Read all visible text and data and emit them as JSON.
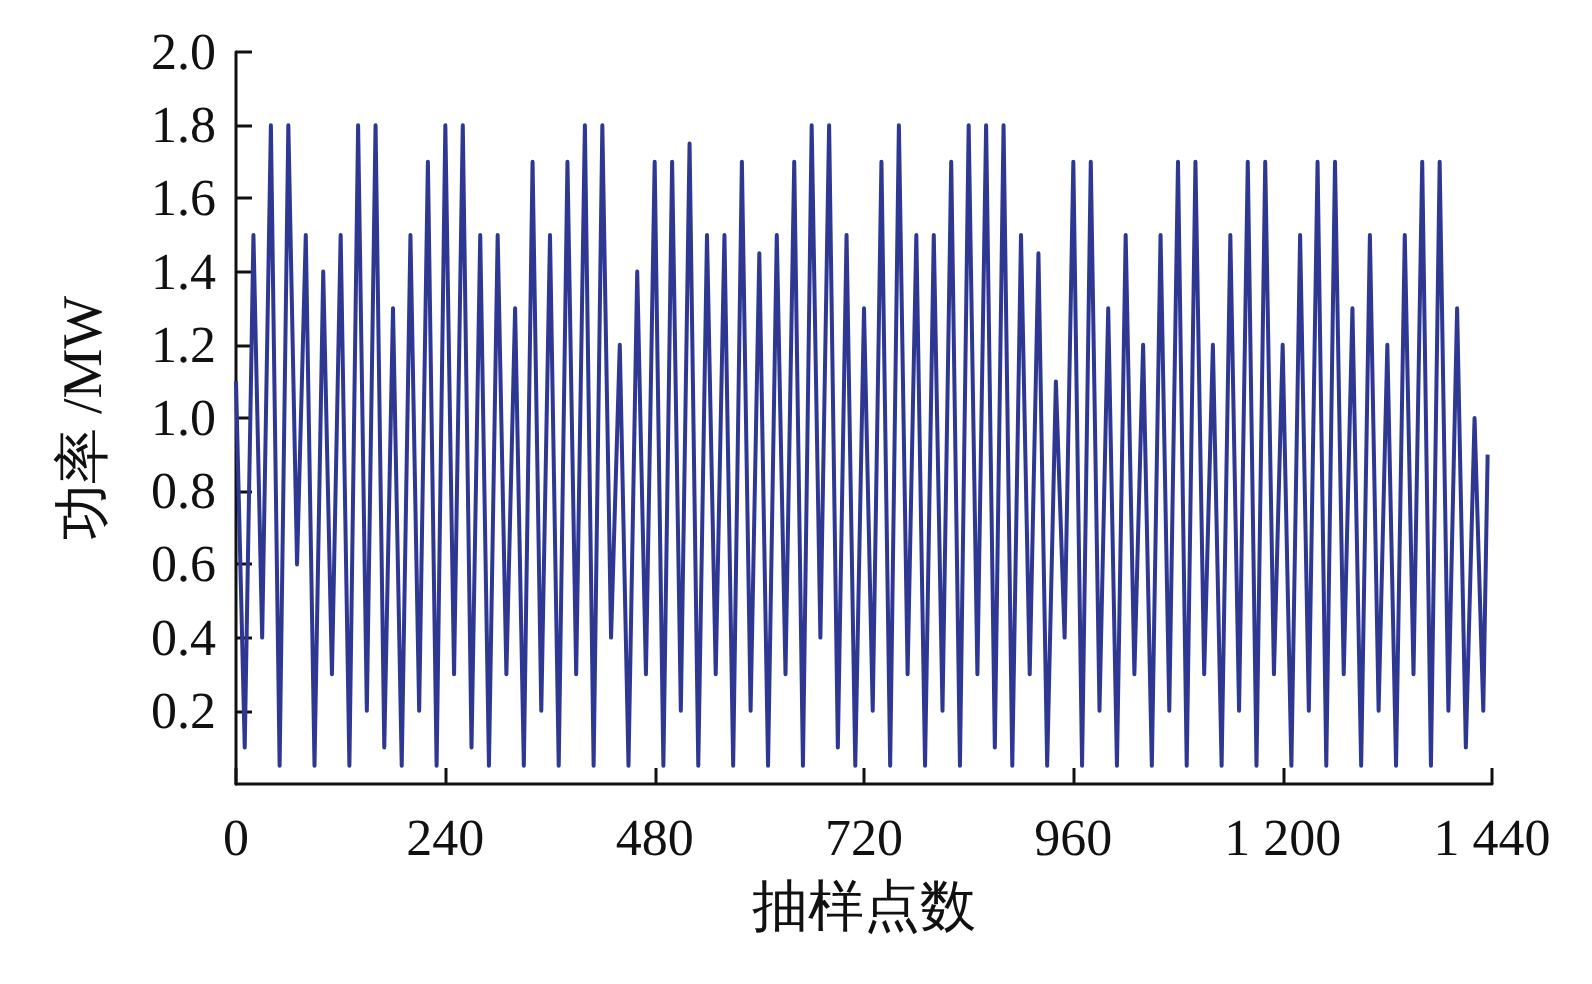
{
  "chart_data": {
    "type": "line",
    "xlabel": "抽样点数",
    "ylabel": "功率 /MW",
    "x": [
      0,
      10,
      20,
      30,
      40,
      50,
      60,
      70,
      80,
      90,
      100,
      110,
      120,
      130,
      140,
      150,
      160,
      170,
      180,
      190,
      200,
      210,
      220,
      230,
      240,
      250,
      260,
      270,
      280,
      290,
      300,
      310,
      320,
      330,
      340,
      350,
      360,
      370,
      380,
      390,
      400,
      410,
      420,
      430,
      440,
      450,
      460,
      470,
      480,
      490,
      500,
      510,
      520,
      530,
      540,
      550,
      560,
      570,
      580,
      590,
      600,
      610,
      620,
      630,
      640,
      650,
      660,
      670,
      680,
      690,
      700,
      710,
      720,
      730,
      740,
      750,
      760,
      770,
      780,
      790,
      800,
      810,
      820,
      830,
      840,
      850,
      860,
      870,
      880,
      890,
      900,
      910,
      920,
      930,
      940,
      950,
      960,
      970,
      980,
      990,
      1000,
      1010,
      1020,
      1030,
      1040,
      1050,
      1060,
      1070,
      1080,
      1090,
      1100,
      1110,
      1120,
      1130,
      1140,
      1150,
      1160,
      1170,
      1180,
      1190,
      1200,
      1210,
      1220,
      1230,
      1240,
      1250,
      1260,
      1270,
      1280,
      1290,
      1300,
      1310,
      1320,
      1330,
      1340,
      1350,
      1360,
      1370,
      1380,
      1390,
      1400,
      1410,
      1420,
      1430,
      1435
    ],
    "series": [
      {
        "color": "#2e3792",
        "values": [
          1.1,
          0.1,
          1.5,
          0.4,
          1.8,
          0.05,
          1.8,
          0.6,
          1.5,
          0.05,
          1.4,
          0.3,
          1.5,
          0.05,
          1.8,
          0.2,
          1.8,
          0.1,
          1.3,
          0.05,
          1.5,
          0.2,
          1.7,
          0.05,
          1.8,
          0.3,
          1.8,
          0.1,
          1.5,
          0.05,
          1.5,
          0.3,
          1.3,
          0.05,
          1.7,
          0.2,
          1.5,
          0.05,
          1.7,
          0.3,
          1.8,
          0.05,
          1.8,
          0.4,
          1.2,
          0.05,
          1.4,
          0.3,
          1.7,
          0.05,
          1.7,
          0.2,
          1.75,
          0.05,
          1.5,
          0.3,
          1.5,
          0.05,
          1.7,
          0.2,
          1.45,
          0.05,
          1.5,
          0.3,
          1.7,
          0.05,
          1.8,
          0.4,
          1.8,
          0.1,
          1.5,
          0.05,
          1.3,
          0.2,
          1.7,
          0.05,
          1.8,
          0.3,
          1.5,
          0.05,
          1.5,
          0.2,
          1.7,
          0.05,
          1.8,
          0.3,
          1.8,
          0.1,
          1.8,
          0.05,
          1.5,
          0.3,
          1.45,
          0.05,
          1.1,
          0.4,
          1.7,
          0.05,
          1.7,
          0.2,
          1.3,
          0.05,
          1.5,
          0.3,
          1.2,
          0.05,
          1.5,
          0.2,
          1.7,
          0.05,
          1.7,
          0.3,
          1.2,
          0.05,
          1.5,
          0.2,
          1.7,
          0.05,
          1.7,
          0.3,
          1.2,
          0.05,
          1.5,
          0.2,
          1.7,
          0.05,
          1.7,
          0.3,
          1.3,
          0.05,
          1.5,
          0.2,
          1.2,
          0.05,
          1.5,
          0.3,
          1.7,
          0.05,
          1.7,
          0.2,
          1.3,
          0.1,
          1.0,
          0.2,
          0.9
        ]
      }
    ],
    "xlim": [
      0,
      1440
    ],
    "xticks": [
      0,
      240,
      480,
      720,
      960,
      {
        "value": 1200,
        "label": "1 200"
      },
      {
        "value": 1440,
        "label": "1 440"
      }
    ],
    "ylim": [
      0,
      2
    ],
    "yticks": [
      0.2,
      0.4,
      0.6,
      0.8,
      {
        "value": 1,
        "label": "1.0"
      },
      1.2,
      1.4,
      1.6,
      1.8,
      {
        "value": 2,
        "label": "2.0"
      }
    ],
    "grid": false,
    "marker": "none",
    "line_style": "solid"
  }
}
